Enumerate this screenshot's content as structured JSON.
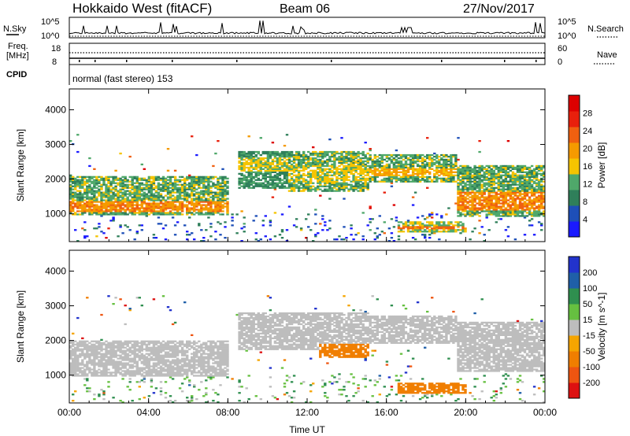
{
  "header": {
    "title": "Hokkaido West (fitACF)",
    "beam": "Beam 06",
    "date": "27/Nov/2017"
  },
  "ctrl": {
    "nsky_label": "N.Sky",
    "nsky_ticks": [
      "10^5",
      "10^0"
    ],
    "nsearch_label": "N.Search",
    "nsearch_ticks": [
      "10^5",
      "10^0"
    ],
    "freq_label_1": "Freq.",
    "freq_label_2": "[MHz]",
    "freq_ticks": [
      "18",
      "8"
    ],
    "nave_label": "Nave",
    "nave_ticks": [
      "60",
      "0"
    ],
    "cpid_label": "CPID",
    "cpid_text": "normal (fast stereo) 153"
  },
  "colors": {
    "power": [
      "#1a1aff",
      "#1e4fb8",
      "#2f7f5a",
      "#4fa86a",
      "#f5c400",
      "#f59a00",
      "#f06010",
      "#e8200c",
      "#dd0000"
    ],
    "velocity": [
      "#dd1111",
      "#ee5511",
      "#f07e00",
      "#f5a500",
      "#bdbdbd",
      "#66c040",
      "#2f8f4f",
      "#1f5fa8",
      "#2233cc"
    ]
  },
  "chart_data": [
    {
      "type": "heatmap",
      "name": "power-panel",
      "ylabel": "Slant Range [km]",
      "xlabel": "",
      "ylim": [
        200,
        4600
      ],
      "yticks": [
        "1000",
        "2000",
        "3000",
        "4000"
      ],
      "xticks": [
        "00:00",
        "04:00",
        "08:00",
        "12:00",
        "16:00",
        "20:00",
        "00:00"
      ],
      "colorbar": {
        "label": "Power [dB]",
        "ticks": [
          "4",
          "8",
          "12",
          "16",
          "20",
          "24",
          "28"
        ]
      },
      "bands": [
        {
          "t": [
            0,
            8
          ],
          "range": [
            950,
            2050
          ],
          "core": [
            1050,
            1350
          ],
          "value_core": 26,
          "value_edge": 10
        },
        {
          "t": [
            8.5,
            11
          ],
          "range": [
            1700,
            2800
          ],
          "core": [
            2200,
            2600
          ],
          "value_core": 20,
          "value_edge": 8
        },
        {
          "t": [
            11,
            15
          ],
          "range": [
            1600,
            2800
          ],
          "core": [
            1900,
            2400
          ],
          "value_core": 20,
          "value_edge": 10
        },
        {
          "t": [
            15,
            19.5
          ],
          "range": [
            1900,
            2700
          ],
          "core": [
            2050,
            2300
          ],
          "value_core": 24,
          "value_edge": 10
        },
        {
          "t": [
            19.5,
            24
          ],
          "range": [
            900,
            2400
          ],
          "core": [
            1100,
            1600
          ],
          "value_core": 26,
          "value_edge": 10
        },
        {
          "t": [
            16.5,
            20
          ],
          "range": [
            450,
            750
          ],
          "core": [
            550,
            650
          ],
          "value_core": 28,
          "value_edge": 12
        }
      ]
    },
    {
      "type": "heatmap",
      "name": "velocity-panel",
      "ylabel": "Slant Range [km]",
      "xlabel": "Time UT",
      "ylim": [
        200,
        4600
      ],
      "yticks": [
        "1000",
        "2000",
        "3000",
        "4000"
      ],
      "xticks": [
        "00:00",
        "04:00",
        "08:00",
        "12:00",
        "16:00",
        "20:00",
        "00:00"
      ],
      "colorbar": {
        "label": "Velocity [m s^-1]",
        "ticks": [
          "200",
          "100",
          "50",
          "15",
          "-15",
          "-50",
          "-100",
          "-200"
        ]
      },
      "bands": [
        {
          "t": [
            0,
            8
          ],
          "range": [
            950,
            2000
          ],
          "value": 0
        },
        {
          "t": [
            8.5,
            11
          ],
          "range": [
            1700,
            2800
          ],
          "value": 0
        },
        {
          "t": [
            11,
            15
          ],
          "range": [
            1700,
            2800
          ],
          "value": 0
        },
        {
          "t": [
            12.5,
            15
          ],
          "range": [
            1500,
            1900
          ],
          "value": -60
        },
        {
          "t": [
            15,
            19.5
          ],
          "range": [
            1900,
            2700
          ],
          "value": 0
        },
        {
          "t": [
            19.5,
            24
          ],
          "range": [
            1100,
            2500
          ],
          "value": 0
        },
        {
          "t": [
            16.5,
            20
          ],
          "range": [
            450,
            750
          ],
          "value": -60
        }
      ]
    }
  ]
}
